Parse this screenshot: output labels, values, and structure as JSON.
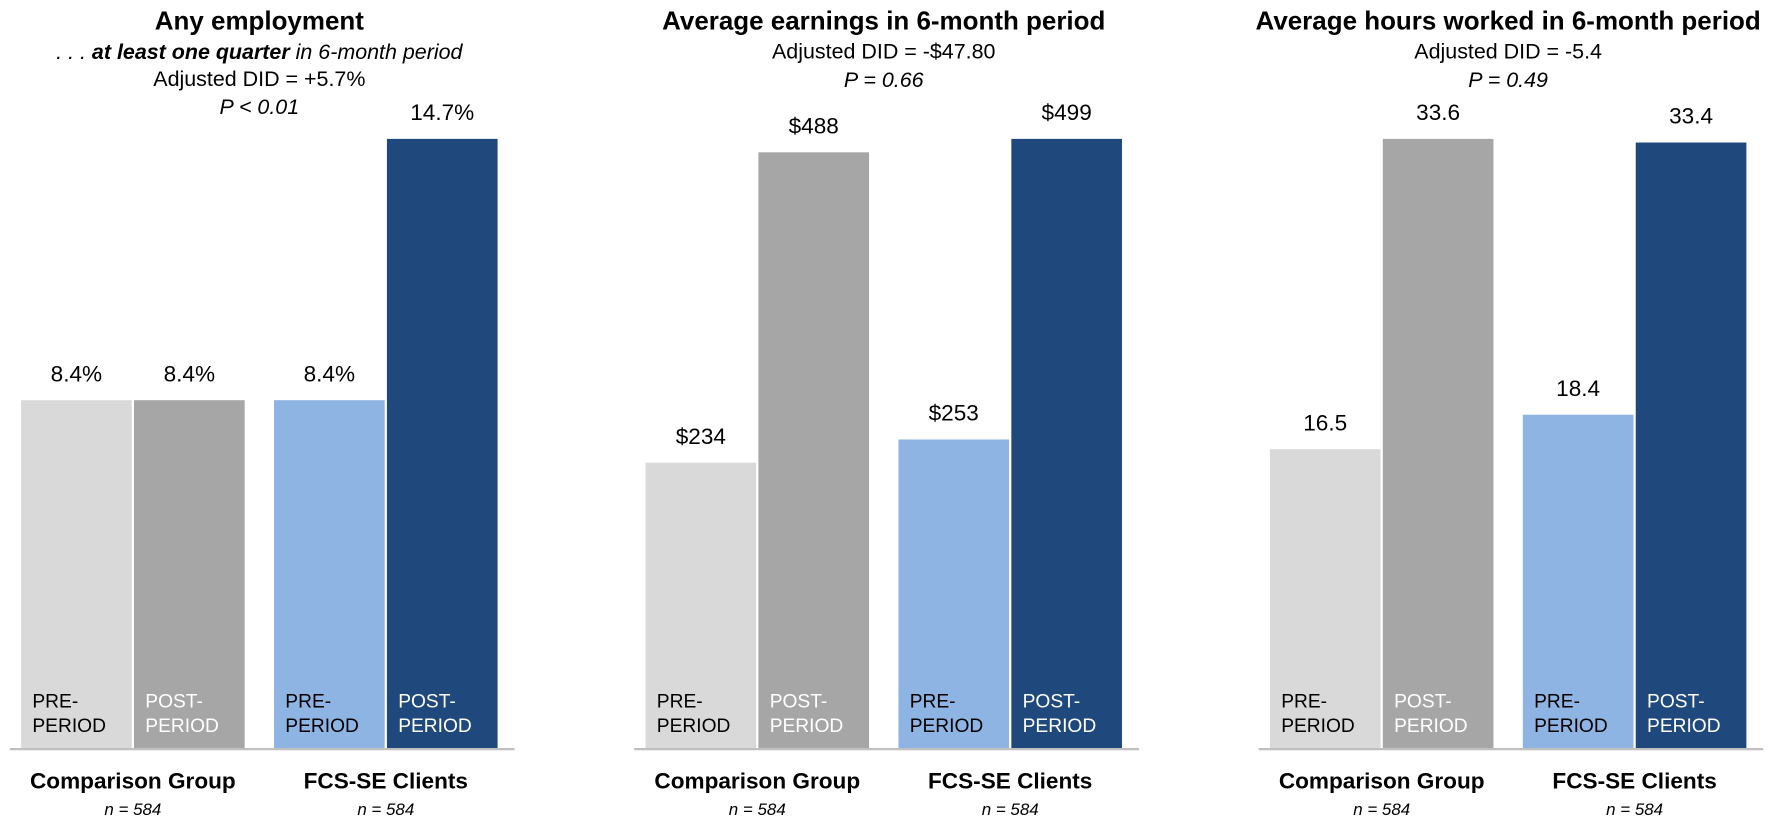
{
  "chart_data": [
    {
      "type": "bar",
      "title": "Any employment",
      "subtitle": [
        ". . . ",
        "at least one quarter",
        " in 6-month period"
      ],
      "annotations": [
        "Adjusted DID = +5.7%",
        "P < 0.01"
      ],
      "categories": [
        [
          "PRE-",
          "PERIOD"
        ],
        [
          "POST-",
          "PERIOD"
        ],
        [
          "PRE-",
          "PERIOD"
        ],
        [
          "POST-",
          "PERIOD"
        ]
      ],
      "values": [
        8.4,
        8.4,
        8.4,
        14.7
      ],
      "value_labels": [
        "8.4%",
        "8.4%",
        "8.4%",
        "14.7%"
      ],
      "colors": [
        "#d9d9d9",
        "#a6a6a6",
        "#8eb4e3",
        "#1f497d"
      ],
      "groups": [
        {
          "name": "Comparison Group",
          "note": "n = 584"
        },
        {
          "name": "FCS-SE Clients",
          "note": "n = 584"
        }
      ]
    },
    {
      "type": "bar",
      "title": "Average earnings in 6-month period",
      "annotations": [
        "Adjusted DID = -$47.80",
        "P = 0.66"
      ],
      "categories": [
        [
          "PRE-",
          "PERIOD"
        ],
        [
          "POST-",
          "PERIOD"
        ],
        [
          "PRE-",
          "PERIOD"
        ],
        [
          "POST-",
          "PERIOD"
        ]
      ],
      "values": [
        234,
        488,
        253,
        499
      ],
      "value_labels": [
        "$234",
        "$488",
        "$253",
        "$499"
      ],
      "colors": [
        "#d9d9d9",
        "#a6a6a6",
        "#8eb4e3",
        "#1f497d"
      ],
      "groups": [
        {
          "name": "Comparison Group",
          "note": "n = 584"
        },
        {
          "name": "FCS-SE Clients",
          "note": "n = 584"
        }
      ]
    },
    {
      "type": "bar",
      "title": "Average hours worked in 6-month period",
      "annotations": [
        "Adjusted DID = -5.4",
        "P = 0.49"
      ],
      "categories": [
        [
          "PRE-",
          "PERIOD"
        ],
        [
          "POST-",
          "PERIOD"
        ],
        [
          "PRE-",
          "PERIOD"
        ],
        [
          "POST-",
          "PERIOD"
        ]
      ],
      "values": [
        16.5,
        33.6,
        18.4,
        33.4
      ],
      "colors": [
        "#d9d9d9",
        "#a6a6a6",
        "#8eb4e3",
        "#1f497d"
      ],
      "groups": [
        {
          "name": "Comparison Group",
          "note": "n = 584"
        },
        {
          "name": "FCS-SE Clients",
          "note": "n = 584"
        }
      ]
    }
  ]
}
